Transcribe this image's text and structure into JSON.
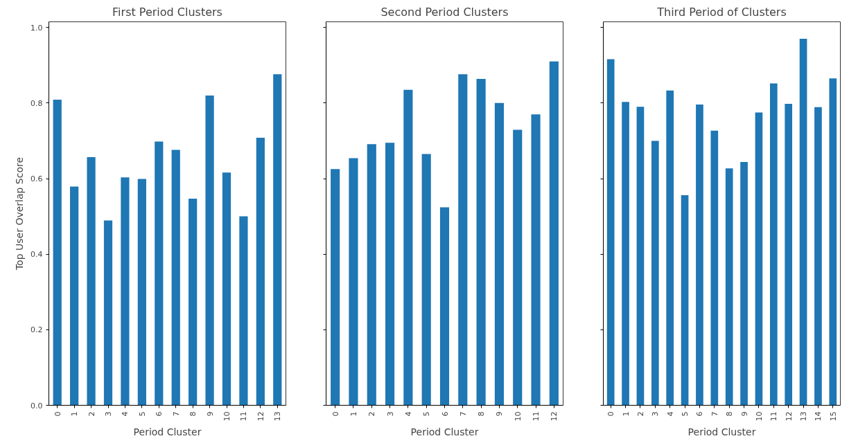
{
  "chart_data": [
    {
      "type": "bar",
      "title": "First Period Clusters",
      "xlabel": "Period Cluster",
      "ylabel": "Top User Overlap Score",
      "categories": [
        "0",
        "1",
        "2",
        "3",
        "4",
        "5",
        "6",
        "7",
        "8",
        "9",
        "10",
        "11",
        "12",
        "13"
      ],
      "values": [
        0.809,
        0.579,
        0.657,
        0.489,
        0.603,
        0.599,
        0.698,
        0.676,
        0.547,
        0.82,
        0.616,
        0.5,
        0.708,
        0.876
      ],
      "color": "#1f77b4",
      "ylim": [
        0,
        1.015
      ],
      "yticks": [
        {
          "value": 0,
          "label": "0.0"
        },
        0.2,
        0.4,
        0.6,
        0.8,
        {
          "value": 1,
          "label": "1.0"
        }
      ],
      "grid": false
    },
    {
      "type": "bar",
      "title": "Second Period Clusters",
      "xlabel": "Period Cluster",
      "categories": [
        "0",
        "1",
        "2",
        "3",
        "4",
        "5",
        "6",
        "7",
        "8",
        "9",
        "10",
        "11",
        "12"
      ],
      "values": [
        0.625,
        0.654,
        0.691,
        0.695,
        0.835,
        0.665,
        0.524,
        0.876,
        0.864,
        0.8,
        0.729,
        0.77,
        0.91
      ],
      "color": "#1f77b4",
      "ylim": [
        0,
        1.015
      ],
      "yticks": [
        0,
        0.2,
        0.4,
        0.6,
        0.8,
        1
      ],
      "tick_labels": "x",
      "grid": false
    },
    {
      "type": "bar",
      "title": "Third Period of Clusters",
      "xlabel": "Period Cluster",
      "categories": [
        "0",
        "1",
        "2",
        "3",
        "4",
        "5",
        "6",
        "7",
        "8",
        "9",
        "10",
        "11",
        "12",
        "13",
        "14",
        "15"
      ],
      "values": [
        0.916,
        0.803,
        0.79,
        0.7,
        0.833,
        0.556,
        0.796,
        0.727,
        0.627,
        0.644,
        0.775,
        0.852,
        0.798,
        0.97,
        0.789,
        0.865
      ],
      "color": "#1f77b4",
      "ylim": [
        0,
        1.015
      ],
      "yticks": [
        0,
        0.2,
        0.4,
        0.6,
        0.8,
        1
      ],
      "tick_labels": "x",
      "grid": false
    }
  ]
}
